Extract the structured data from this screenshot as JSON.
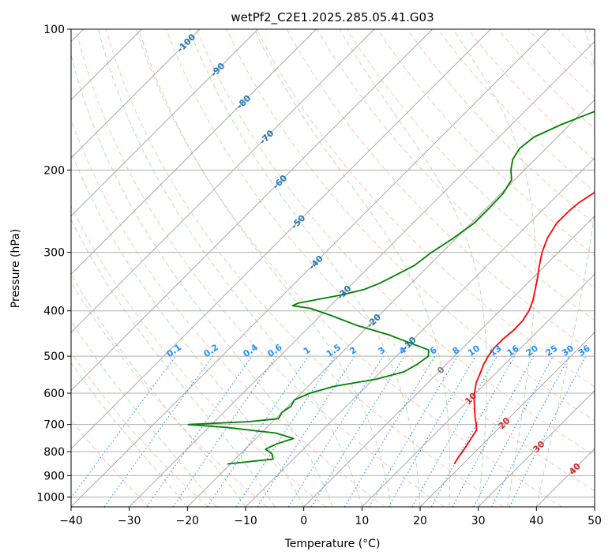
{
  "chart_data": {
    "type": "line",
    "title": "wetPf2_C2E1.2025.285.05.41.G03",
    "xlabel": "Temperature (°C)",
    "ylabel": "Pressure (hPa)",
    "xlim": [
      -40,
      50
    ],
    "ylim": [
      1050,
      100
    ],
    "y_scale": "log",
    "x_ticks": [
      "-40",
      "-30",
      "-20",
      "-10",
      "0",
      "10",
      "20",
      "30",
      "40",
      "50"
    ],
    "y_ticks": [
      "100",
      "200",
      "300",
      "400",
      "500",
      "600",
      "700",
      "800",
      "900",
      "1000"
    ],
    "grid": true,
    "colors": {
      "temperature": "#ff0000",
      "dewpoint": "#008000",
      "isotherm_labels": "#1f77b4",
      "mixing_ratio": "#1e90ff",
      "dry_adiabat": "#ff7f50",
      "moist_adiabat": "#2ca02c",
      "warm_labels": "#d62728",
      "zero_label": "#808080"
    },
    "series": [
      {
        "p": [
          850,
          820,
          800,
          780,
          750,
          720,
          700,
          680,
          650,
          620,
          600,
          570,
          540,
          520,
          500,
          480,
          460,
          440,
          420,
          400,
          380,
          360,
          340,
          320,
          300,
          280,
          260,
          245,
          235,
          225,
          215,
          205,
          195,
          180,
          165,
          150,
          140,
          130,
          120,
          110,
          100
        ],
        "t": [
          18.5,
          18.0,
          17.8,
          17.5,
          17.0,
          16.5,
          15.5,
          14.3,
          12.6,
          10.9,
          9.8,
          8.3,
          7.2,
          6.4,
          5.8,
          5.4,
          5.4,
          5.7,
          5.6,
          5.0,
          3.9,
          2.4,
          0.8,
          -1.0,
          -2.8,
          -4.3,
          -5.3,
          -5.3,
          -5.0,
          -4.2,
          -3.1,
          -1.7,
          -0.4,
          1.0,
          2.8,
          4.9,
          6.4,
          8.3,
          10.7,
          13.9,
          17.0
        ]
      },
      {
        "p": [
          850,
          830,
          810,
          790,
          770,
          750,
          730,
          710,
          700,
          690,
          680,
          660,
          640,
          620,
          600,
          580,
          560,
          540,
          520,
          500,
          485,
          470,
          450,
          430,
          410,
          395,
          390,
          385,
          380,
          370,
          360,
          350,
          340,
          320,
          300,
          280,
          260,
          240,
          225,
          210,
          200,
          190,
          180,
          170,
          160,
          150,
          140,
          130,
          120,
          110,
          100
        ],
        "t": [
          -20.5,
          -13.5,
          -14.5,
          -16.5,
          -15.5,
          -13.5,
          -17.5,
          -27,
          -34,
          -24,
          -19.5,
          -20,
          -19.5,
          -20,
          -18.5,
          -15.5,
          -9.5,
          -6.0,
          -5.0,
          -4.5,
          -5.5,
          -9.5,
          -15,
          -22,
          -28,
          -33,
          -36.5,
          -36,
          -34,
          -30,
          -27,
          -25.5,
          -24.5,
          -22.5,
          -21.8,
          -20.5,
          -19.5,
          -19.5,
          -19.6,
          -20.5,
          -22.3,
          -23.8,
          -24.5,
          -24,
          -21.5,
          -18,
          -18.5,
          -16.8,
          -14.5,
          -12.5,
          -10.8
        ]
      }
    ],
    "isotherm_labels": [
      "-100",
      "-90",
      "-80",
      "-70",
      "-60",
      "-50",
      "-40",
      "-30",
      "-20",
      "-10"
    ],
    "mixing_ratio_labels": [
      "0.1",
      "0.2",
      "0.4",
      "0.6",
      "1",
      "1.5",
      "2",
      "3",
      "4",
      "6",
      "8",
      "10",
      "13",
      "16",
      "20",
      "25",
      "30",
      "36"
    ],
    "warm_labels": [
      "0",
      "10",
      "20",
      "30",
      "40"
    ]
  }
}
